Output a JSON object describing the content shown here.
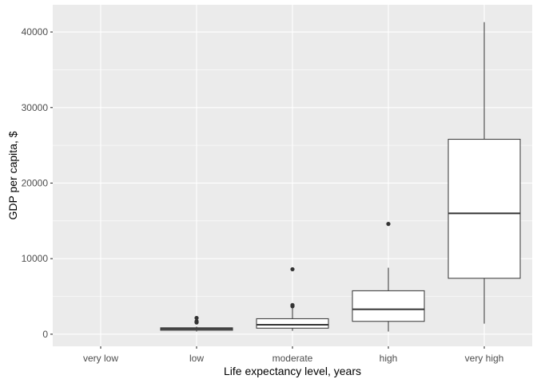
{
  "chart_data": {
    "type": "box",
    "title": "",
    "xlabel": "Life expectancy level, years",
    "ylabel": "GDP per capita, $",
    "categories": [
      "very low",
      "low",
      "moderate",
      "high",
      "very high"
    ],
    "ylim": [
      -1600,
      43600
    ],
    "yticks": [
      0,
      10000,
      20000,
      30000,
      40000
    ],
    "ytick_labels": [
      "0",
      "10000",
      "20000",
      "30000",
      "40000"
    ],
    "grid": true,
    "legend": "none",
    "colors": {
      "panel": "#ebebeb",
      "grid_major": "#ffffff",
      "box_fill": "#ffffff",
      "box_stroke": "#333333",
      "outlier": "#333333",
      "tick_text": "#4d4d4d",
      "tick_mark": "#333333"
    },
    "boxes": [
      {
        "category": "very low",
        "whisker_low": null,
        "q1": null,
        "median": null,
        "q3": null,
        "whisker_high": null,
        "outliers": []
      },
      {
        "category": "low",
        "whisker_low": 350,
        "q1": 520,
        "median": 700,
        "q3": 850,
        "whisker_high": 1000,
        "outliers": [
          1550,
          1700,
          2150
        ]
      },
      {
        "category": "moderate",
        "whisker_low": 450,
        "q1": 800,
        "median": 1250,
        "q3": 2050,
        "whisker_high": 3500,
        "outliers": [
          3700,
          3850,
          8600
        ]
      },
      {
        "category": "high",
        "whisker_low": 350,
        "q1": 1700,
        "median": 3300,
        "q3": 5750,
        "whisker_high": 8800,
        "outliers": [
          14600
        ]
      },
      {
        "category": "very high",
        "whisker_low": 1400,
        "q1": 7400,
        "median": 16000,
        "q3": 25800,
        "whisker_high": 41300,
        "outliers": []
      }
    ]
  }
}
